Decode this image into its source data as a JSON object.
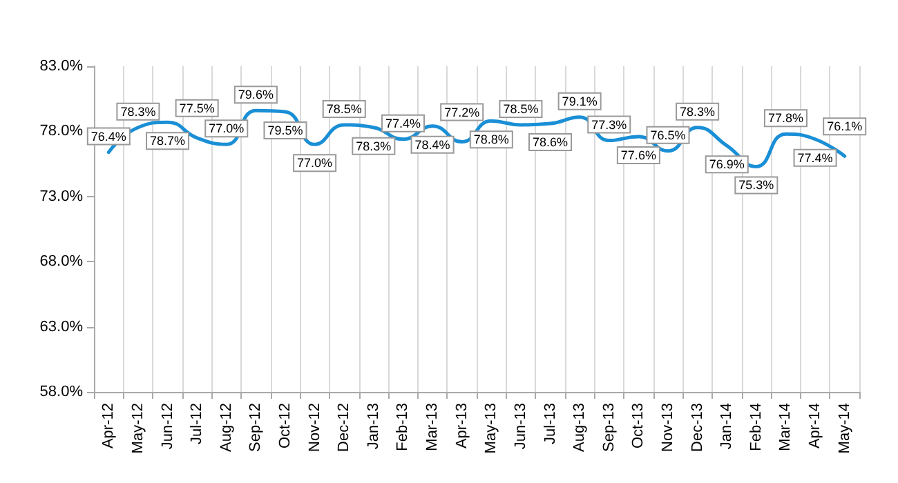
{
  "chart_data": {
    "type": "line",
    "categories": [
      "Apr-12",
      "May-12",
      "Jun-12",
      "Jul-12",
      "Aug-12",
      "Sep-12",
      "Oct-12",
      "Nov-12",
      "Dec-12",
      "Jan-13",
      "Feb-13",
      "Mar-13",
      "Apr-13",
      "May-13",
      "Jun-13",
      "Jul-13",
      "Aug-13",
      "Sep-13",
      "Oct-13",
      "Nov-13",
      "Dec-13",
      "Jan-14",
      "Feb-14",
      "Mar-14",
      "Apr-14",
      "May-14"
    ],
    "series": [
      {
        "color": "#1a8fd6",
        "values": [
          76.4,
          78.3,
          78.7,
          77.5,
          77.0,
          79.6,
          79.5,
          77.0,
          78.5,
          78.3,
          77.4,
          78.4,
          77.2,
          78.8,
          78.5,
          78.6,
          79.1,
          77.3,
          77.6,
          76.5,
          78.3,
          76.9,
          75.3,
          77.8,
          77.4,
          76.1
        ],
        "value_labels": [
          "76.4%",
          "78.3%",
          "78.7%",
          "77.5%",
          "77.0%",
          "79.6%",
          "79.5%",
          "77.0%",
          "78.5%",
          "78.3%",
          "77.4%",
          "78.4%",
          "77.2%",
          "78.8%",
          "78.5%",
          "78.6%",
          "79.1%",
          "77.3%",
          "77.6%",
          "76.5%",
          "78.3%",
          "76.9%",
          "75.3%",
          "77.8%",
          "77.4%",
          "76.1%"
        ]
      }
    ],
    "ylim": [
      58,
      83
    ],
    "yticks": [
      {
        "value": 58,
        "label": "58.0%"
      },
      {
        "value": 63,
        "label": "63.0%"
      },
      {
        "value": 68,
        "label": "68.0%"
      },
      {
        "value": 73,
        "label": "73.0%"
      },
      {
        "value": 78,
        "label": "78.0%"
      },
      {
        "value": 83,
        "label": "83.0%"
      }
    ],
    "grid": "x",
    "marker": "none",
    "line_style": "solid"
  }
}
